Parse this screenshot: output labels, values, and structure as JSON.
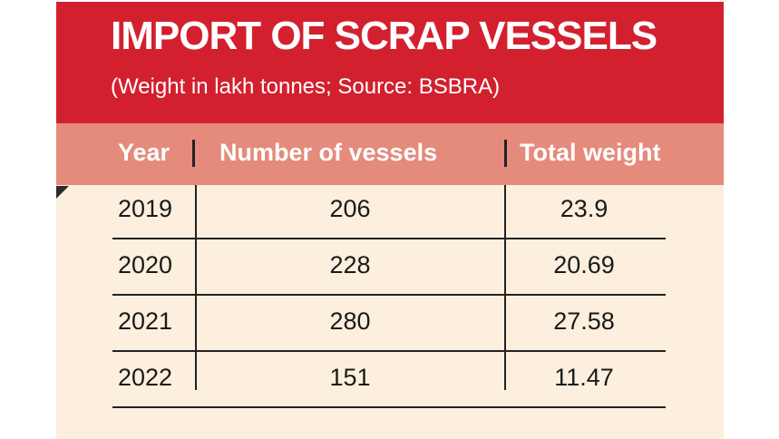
{
  "header": {
    "title": "IMPORT OF SCRAP VESSELS",
    "subtitle": "(Weight in lakh tonnes; Source: BSBRA)"
  },
  "columns": {
    "year": "Year",
    "vessels": "Number of vessels",
    "weight": "Total weight"
  },
  "rows": [
    {
      "year": "2019",
      "vessels": "206",
      "weight": "23.9"
    },
    {
      "year": "2020",
      "vessels": "228",
      "weight": "20.69"
    },
    {
      "year": "2021",
      "vessels": "280",
      "weight": "27.58"
    },
    {
      "year": "2022",
      "vessels": "151",
      "weight": "11.47"
    }
  ],
  "colors": {
    "header_bg": "#d2202f",
    "column_header_bg": "#e48b7c",
    "body_bg": "#fcefdd",
    "rule": "#222222"
  },
  "chart_data": {
    "type": "table",
    "title": "IMPORT OF SCRAP VESSELS",
    "subtitle": "(Weight in lakh tonnes; Source: BSBRA)",
    "columns": [
      "Year",
      "Number of vessels",
      "Total weight"
    ],
    "x": [
      2019,
      2020,
      2021,
      2022
    ],
    "series": [
      {
        "name": "Number of vessels",
        "values": [
          206,
          228,
          280,
          151
        ]
      },
      {
        "name": "Total weight",
        "values": [
          23.9,
          20.69,
          27.58,
          11.47
        ]
      }
    ]
  }
}
